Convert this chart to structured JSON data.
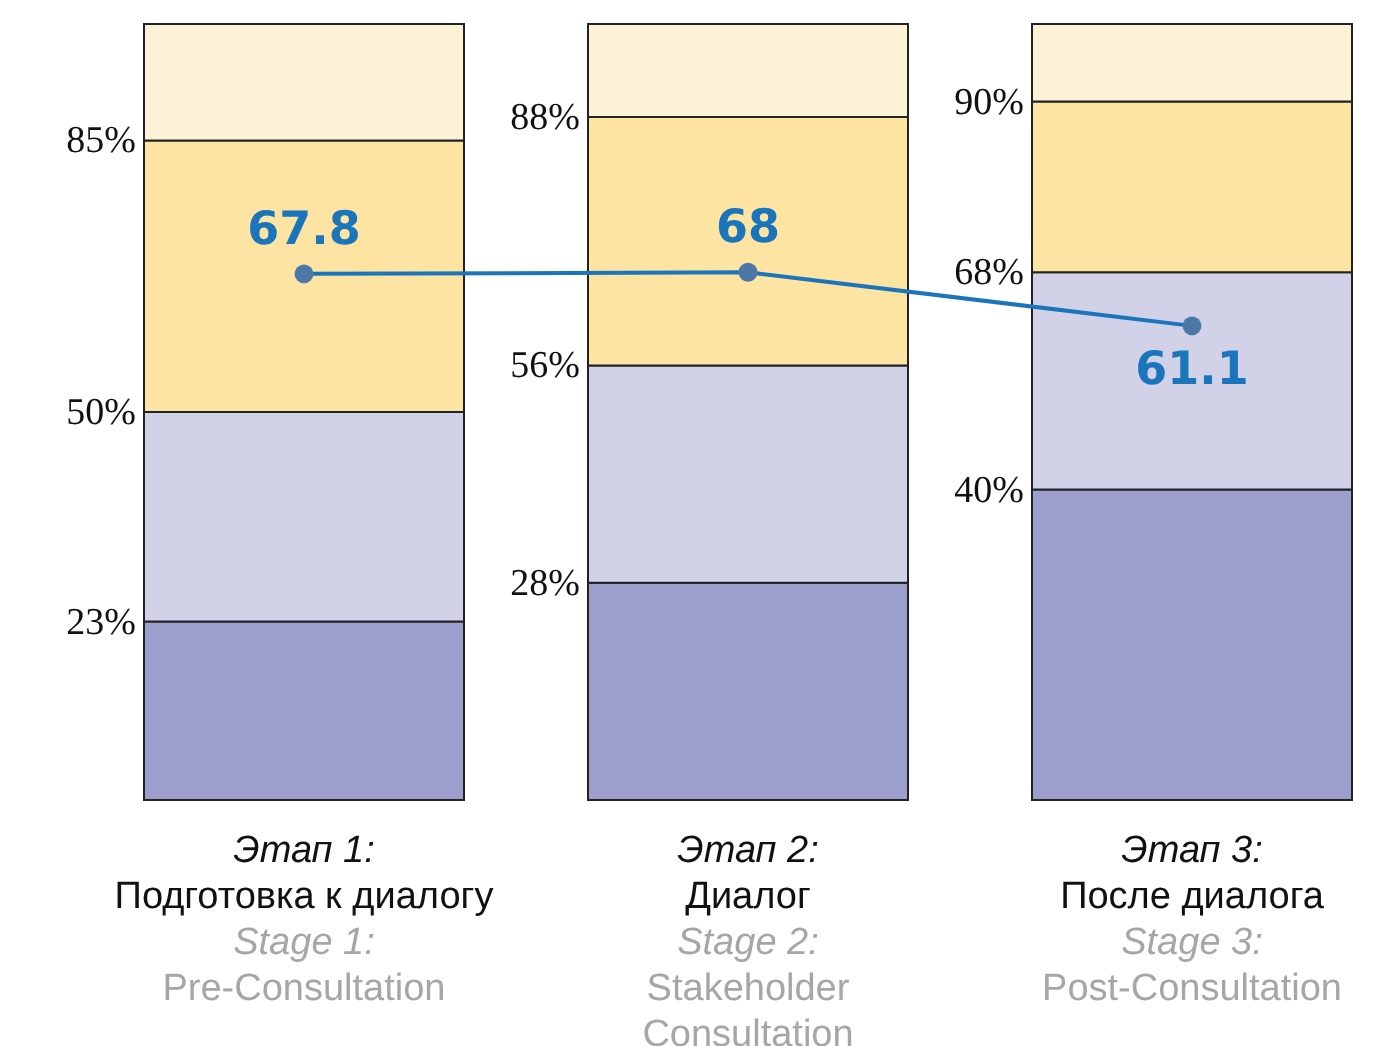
{
  "chart_data": {
    "type": "bar",
    "stacked": true,
    "categories": [
      "Этап 1:\nПодготовка к диалогу",
      "Этап 2:\nДиалог",
      "Этап 3:\nПосле диалога"
    ],
    "ylim": [
      0,
      100
    ],
    "tick_labels": false,
    "series": [
      {
        "color": "#9c9fcc",
        "values": [
          23,
          28,
          40
        ]
      },
      {
        "color": "#d1d2e7",
        "values": [
          27,
          28,
          28
        ]
      },
      {
        "color": "#fde4a3",
        "values": [
          35,
          32,
          22
        ]
      },
      {
        "color": "#fef2d6",
        "values": [
          15,
          12,
          10
        ]
      },
      {
        "type": "line",
        "color": "#1b75bb",
        "values": [
          67.8,
          68,
          61.1
        ],
        "marker": "circle",
        "data_labels": true
      }
    ],
    "annotations": [
      "23%",
      "50%",
      "85%",
      "28%",
      "56%",
      "88%",
      "40%",
      "68%",
      "90%",
      "Stage 1:\nPre-Consultation",
      "Stage 2:\nStakeholder\nConsultation",
      "Stage 3:\nPost-Consultation"
    ]
  }
}
